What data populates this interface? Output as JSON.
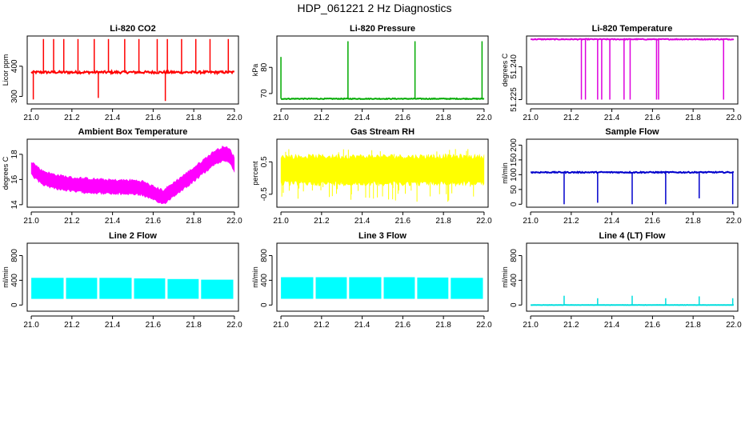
{
  "page_title": "HDP_061221 2 Hz Diagnostics",
  "chart_data": [
    {
      "type": "line",
      "title": "Li-820 CO2",
      "ylabel": "Licor ppm",
      "color": "#ff0000",
      "xlim": [
        20.98,
        22.02
      ],
      "ylim": [
        275,
        500
      ],
      "xticks": [
        21.0,
        21.2,
        21.4,
        21.6,
        21.8,
        22.0
      ],
      "xtick_labels": [
        "21.0",
        "21.2",
        "21.4",
        "21.6",
        "21.8",
        "22.0"
      ],
      "yticks": [
        300,
        400
      ],
      "ytick_labels": [
        "300",
        "400"
      ],
      "baseline": 380,
      "noise": 4,
      "spikes": [
        {
          "x": 21.01,
          "y": 290
        },
        {
          "x": 21.06,
          "y": 490
        },
        {
          "x": 21.11,
          "y": 490
        },
        {
          "x": 21.16,
          "y": 490
        },
        {
          "x": 21.23,
          "y": 490
        },
        {
          "x": 21.31,
          "y": 490
        },
        {
          "x": 21.33,
          "y": 295
        },
        {
          "x": 21.38,
          "y": 490
        },
        {
          "x": 21.46,
          "y": 490
        },
        {
          "x": 21.53,
          "y": 490
        },
        {
          "x": 21.62,
          "y": 490
        },
        {
          "x": 21.66,
          "y": 285
        },
        {
          "x": 21.67,
          "y": 490
        },
        {
          "x": 21.74,
          "y": 490
        },
        {
          "x": 21.81,
          "y": 490
        },
        {
          "x": 21.88,
          "y": 490
        },
        {
          "x": 21.97,
          "y": 490
        }
      ]
    },
    {
      "type": "line",
      "title": "Li-820 Pressure",
      "ylabel": "kPa",
      "color": "#00aa00",
      "xlim": [
        20.98,
        22.02
      ],
      "ylim": [
        66,
        92
      ],
      "xticks": [
        21.0,
        21.2,
        21.4,
        21.6,
        21.8,
        22.0
      ],
      "xtick_labels": [
        "21.0",
        "21.2",
        "21.4",
        "21.6",
        "21.8",
        "22.0"
      ],
      "yticks": [
        70,
        80
      ],
      "ytick_labels": [
        "70",
        "80"
      ],
      "baseline": 68,
      "noise": 0.15,
      "spikes": [
        {
          "x": 21.0,
          "y": 84
        },
        {
          "x": 21.33,
          "y": 90
        },
        {
          "x": 21.66,
          "y": 90
        },
        {
          "x": 21.99,
          "y": 90
        }
      ]
    },
    {
      "type": "line",
      "title": "Li-820 Temperature",
      "ylabel": "degrees C",
      "color": "#dd00dd",
      "xlim": [
        20.98,
        22.02
      ],
      "ylim": [
        51.223,
        51.254
      ],
      "xticks": [
        21.0,
        21.2,
        21.4,
        21.6,
        21.8,
        22.0
      ],
      "xtick_labels": [
        "21.0",
        "21.2",
        "21.4",
        "21.6",
        "21.8",
        "22.0"
      ],
      "yticks": [
        51.225,
        51.24
      ],
      "ytick_labels": [
        "51.225",
        "51.240"
      ],
      "baseline": 51.2525,
      "noise": 0.0002,
      "spikes": [
        {
          "x": 21.25,
          "y": 51.225
        },
        {
          "x": 21.27,
          "y": 51.225
        },
        {
          "x": 21.33,
          "y": 51.225
        },
        {
          "x": 21.35,
          "y": 51.225
        },
        {
          "x": 21.39,
          "y": 51.225
        },
        {
          "x": 21.46,
          "y": 51.225
        },
        {
          "x": 21.49,
          "y": 51.225
        },
        {
          "x": 21.62,
          "y": 51.225
        },
        {
          "x": 21.63,
          "y": 51.225
        },
        {
          "x": 21.95,
          "y": 51.225
        }
      ]
    },
    {
      "type": "area",
      "title": "Ambient Box Temperature",
      "ylabel": "degrees C",
      "color": "#ff00ff",
      "xlim": [
        20.98,
        22.02
      ],
      "ylim": [
        13.8,
        19.2
      ],
      "xticks": [
        21.0,
        21.2,
        21.4,
        21.6,
        21.8,
        22.0
      ],
      "xtick_labels": [
        "21.0",
        "21.2",
        "21.4",
        "21.6",
        "21.8",
        "22.0"
      ],
      "yticks": [
        14,
        16,
        18
      ],
      "ytick_labels": [
        "14",
        "16",
        "18"
      ],
      "center_x": [
        21.0,
        21.05,
        21.1,
        21.2,
        21.3,
        21.4,
        21.5,
        21.55,
        21.6,
        21.65,
        21.7,
        21.8,
        21.9,
        21.95,
        21.98,
        22.0
      ],
      "center_y": [
        16.9,
        16.2,
        15.9,
        15.6,
        15.5,
        15.4,
        15.4,
        15.3,
        14.9,
        14.6,
        15.2,
        16.4,
        17.7,
        18.1,
        17.8,
        17.2
      ],
      "band": 0.6
    },
    {
      "type": "area",
      "title": "Gas Stream RH",
      "ylabel": "percent",
      "color": "#ffff00",
      "xlim": [
        20.98,
        22.02
      ],
      "ylim": [
        -0.9,
        1.2
      ],
      "xticks": [
        21.0,
        21.2,
        21.4,
        21.6,
        21.8,
        22.0
      ],
      "xtick_labels": [
        "21.0",
        "21.2",
        "21.4",
        "21.6",
        "21.8",
        "22.0"
      ],
      "yticks": [
        -0.5,
        0.5
      ],
      "ytick_labels": [
        "-0.5",
        "0.5"
      ],
      "center_x": [
        21.0,
        22.0
      ],
      "center_y": [
        0.25,
        0.25
      ],
      "band": 0.45,
      "outlier_low": -0.75,
      "outlier_high": 0.9
    },
    {
      "type": "line",
      "title": "Sample Flow",
      "ylabel": "ml/min",
      "color": "#0000cc",
      "xlim": [
        20.98,
        22.02
      ],
      "ylim": [
        -10,
        220
      ],
      "xticks": [
        21.0,
        21.2,
        21.4,
        21.6,
        21.8,
        22.0
      ],
      "xtick_labels": [
        "21.0",
        "21.2",
        "21.4",
        "21.6",
        "21.8",
        "22.0"
      ],
      "yticks": [
        0,
        50,
        100,
        150,
        200
      ],
      "ytick_labels": [
        "0",
        "50",
        "100",
        "150",
        "200"
      ],
      "baseline": 108,
      "noise": 2,
      "spikes": [
        {
          "x": 21.165,
          "y": 0
        },
        {
          "x": 21.33,
          "y": 5
        },
        {
          "x": 21.5,
          "y": 0
        },
        {
          "x": 21.665,
          "y": 0
        },
        {
          "x": 21.83,
          "y": 20
        },
        {
          "x": 21.995,
          "y": 0
        }
      ]
    },
    {
      "type": "area",
      "title": "Line 2 Flow",
      "ylabel": "ml/min",
      "color": "#00ffff",
      "xlim": [
        20.98,
        22.02
      ],
      "ylim": [
        -100,
        1000
      ],
      "xticks": [
        21.0,
        21.2,
        21.4,
        21.6,
        21.8,
        22.0
      ],
      "xtick_labels": [
        "21.0",
        "21.2",
        "21.4",
        "21.6",
        "21.8",
        "22.0"
      ],
      "yticks": [
        0,
        400,
        800
      ],
      "ytick_labels": [
        "0",
        "400",
        "800"
      ],
      "block_low": 100,
      "block_high": [
        440,
        440,
        440,
        430,
        420,
        410
      ],
      "gaps": [
        21.165,
        21.33,
        21.5,
        21.665,
        21.83
      ]
    },
    {
      "type": "area",
      "title": "Line 3 Flow",
      "ylabel": "ml/min",
      "color": "#00ffff",
      "xlim": [
        20.98,
        22.02
      ],
      "ylim": [
        -100,
        1000
      ],
      "xticks": [
        21.0,
        21.2,
        21.4,
        21.6,
        21.8,
        22.0
      ],
      "xtick_labels": [
        "21.0",
        "21.2",
        "21.4",
        "21.6",
        "21.8",
        "22.0"
      ],
      "yticks": [
        0,
        400,
        800
      ],
      "ytick_labels": [
        "0",
        "400",
        "800"
      ],
      "block_low": 100,
      "block_high": [
        450,
        450,
        450,
        450,
        445,
        440
      ],
      "gaps": [
        21.165,
        21.33,
        21.5,
        21.665,
        21.83
      ]
    },
    {
      "type": "line",
      "title": "Line 4 (LT) Flow",
      "ylabel": "ml/min",
      "color": "#00dddd",
      "xlim": [
        20.98,
        22.02
      ],
      "ylim": [
        -100,
        1000
      ],
      "xticks": [
        21.0,
        21.2,
        21.4,
        21.6,
        21.8,
        22.0
      ],
      "xtick_labels": [
        "21.0",
        "21.2",
        "21.4",
        "21.6",
        "21.8",
        "22.0"
      ],
      "yticks": [
        0,
        400,
        800
      ],
      "ytick_labels": [
        "0",
        "400",
        "800"
      ],
      "baseline": 0,
      "noise": 2,
      "spikes": [
        {
          "x": 21.165,
          "y": 150
        },
        {
          "x": 21.33,
          "y": 110
        },
        {
          "x": 21.5,
          "y": 150
        },
        {
          "x": 21.665,
          "y": 110
        },
        {
          "x": 21.83,
          "y": 140
        },
        {
          "x": 21.995,
          "y": 110
        }
      ]
    }
  ]
}
